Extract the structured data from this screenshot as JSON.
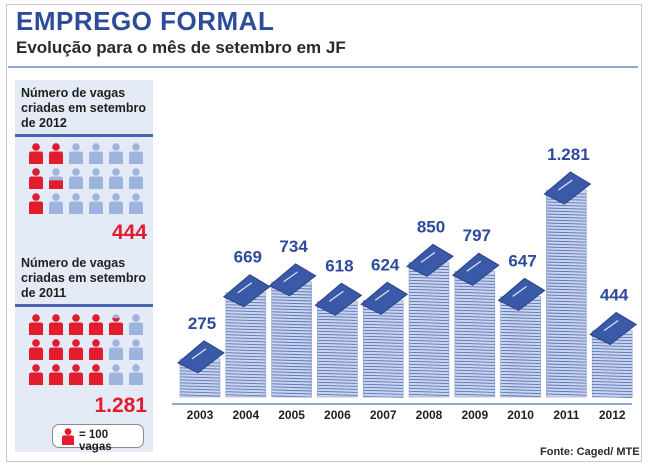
{
  "header": {
    "title": "EMPREGO FORMAL",
    "subtitle": "Evolução para o mês de setembro em JF"
  },
  "sidebar": {
    "panel_2012": {
      "label_lines": [
        "Número de vagas",
        "criadas em setembro",
        "de 2012"
      ],
      "value": "444",
      "icons_shown": 4.44
    },
    "panel_2011": {
      "label_lines": [
        "Número de vagas",
        "criadas em setembro",
        "de 2011"
      ],
      "value": "1.281",
      "icons_shown": 12.81
    },
    "legend": {
      "text": "= 100 vagas",
      "icon": "person-icon"
    }
  },
  "source": "Fonte: Caged/ MTE",
  "colors": {
    "title": "#2e4b9a",
    "highlight_person": "#e21b2d",
    "base_person": "#9fb4dc",
    "sidebar_bg": "#e4ebf7",
    "rule": "#4a64b0",
    "book_cover": "#3a5aa8",
    "pages": "#c9d5ee"
  },
  "chart_data": {
    "type": "bar",
    "categories": [
      "2003",
      "2004",
      "2005",
      "2006",
      "2007",
      "2008",
      "2009",
      "2010",
      "2011",
      "2012"
    ],
    "values": [
      275,
      669,
      734,
      618,
      624,
      850,
      797,
      647,
      1281,
      444
    ],
    "value_labels": [
      "275",
      "669",
      "734",
      "618",
      "624",
      "850",
      "797",
      "647",
      "1.281",
      "444"
    ],
    "title": "",
    "xlabel": "",
    "ylabel": "",
    "ylim": [
      0,
      1281
    ],
    "grid": false,
    "legend": "none"
  }
}
